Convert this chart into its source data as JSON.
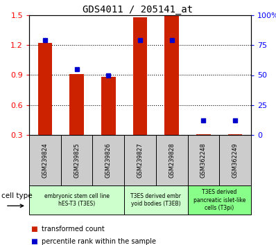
{
  "title": "GDS4011 / 205141_at",
  "samples": [
    "GSM239824",
    "GSM239825",
    "GSM239826",
    "GSM239827",
    "GSM239828",
    "GSM362248",
    "GSM362249"
  ],
  "transformed_count": [
    1.22,
    0.91,
    0.88,
    1.48,
    1.5,
    0.31,
    0.31
  ],
  "percentile_rank_pct": [
    79,
    55,
    50,
    79,
    79,
    12,
    12
  ],
  "ylim_left": [
    0.3,
    1.5
  ],
  "ylim_right": [
    0,
    100
  ],
  "yticks_left": [
    0.3,
    0.6,
    0.9,
    1.2,
    1.5
  ],
  "ytick_labels_left": [
    "0.3",
    "0.6",
    "0.9",
    "1.2",
    "1.5"
  ],
  "yticks_right": [
    0,
    25,
    50,
    75,
    100
  ],
  "ytick_labels_right": [
    "0",
    "25",
    "50",
    "75",
    "100%"
  ],
  "bar_color": "#cc2200",
  "dot_color": "#0000cc",
  "bar_width": 0.45,
  "sample_box_color": "#cccccc",
  "legend_red_label": "transformed count",
  "legend_blue_label": "percentile rank within the sample",
  "cell_type_label": "cell type",
  "background_color": "#ffffff",
  "groups": [
    {
      "label": "embryonic stem cell line\nhES-T3 (T3ES)",
      "start": 0,
      "end": 2,
      "color": "#ccffcc"
    },
    {
      "label": "T3ES derived embr\nyoid bodies (T3EB)",
      "start": 3,
      "end": 4,
      "color": "#ccffcc"
    },
    {
      "label": "T3ES derived\npancreatic islet-like\ncells (T3pi)",
      "start": 5,
      "end": 6,
      "color": "#88ff88"
    }
  ]
}
